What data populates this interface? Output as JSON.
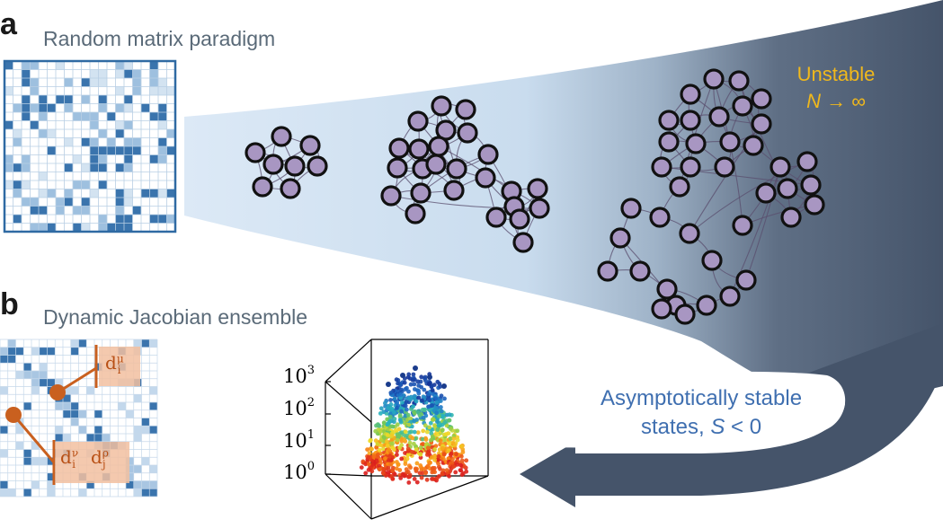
{
  "panel_a": {
    "letter": "a",
    "title": "Random matrix paradigm",
    "unstable_line1": "Unstable",
    "unstable_N": "N",
    "unstable_rest": " → ∞"
  },
  "panel_b": {
    "letter": "b",
    "title": "Dynamic Jacobian ensemble",
    "stable_line1": "Asymptotically stable",
    "stable_line2_pre": "states, ",
    "stable_S": "S",
    "stable_line2_post": " < 0",
    "d_mu": {
      "base": "d",
      "sub": "i",
      "sup": "μ"
    },
    "d_nu": {
      "base": "d",
      "sub": "i",
      "sup": "ν"
    },
    "d_rho": {
      "base": "d",
      "sub": "j",
      "sup": "ρ"
    }
  },
  "yticks": [
    {
      "base": "10",
      "exp": "3"
    },
    {
      "base": "10",
      "exp": "2"
    },
    {
      "base": "10",
      "exp": "1"
    },
    {
      "base": "10",
      "exp": "0"
    }
  ],
  "colors": {
    "matrix_dark": "#3a74ad",
    "matrix_light": "#c5d9ec",
    "funnel_light": "#d9e8f5",
    "funnel_dark": "#45546a",
    "node_fill": "#a896c2",
    "node_stroke": "#111111",
    "accent_orange": "#c9601f",
    "unstable_yellow": "#f0b81c",
    "stable_blue": "#3f6fb0"
  }
}
